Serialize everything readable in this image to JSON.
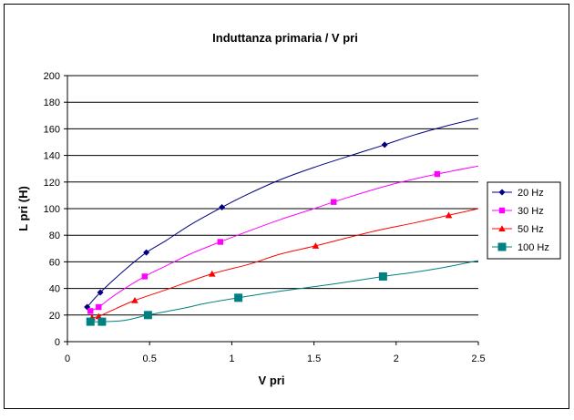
{
  "chart_data": {
    "type": "line",
    "title": "Induttanza primaria / V pri",
    "xlabel": "V pri",
    "ylabel": "L pri (H)",
    "xlim": [
      0,
      2.5
    ],
    "ylim": [
      0,
      200
    ],
    "x_ticks": [
      "0",
      "0.5",
      "1",
      "1.5",
      "2",
      "2.5"
    ],
    "y_ticks": [
      "0",
      "20",
      "40",
      "60",
      "80",
      "100",
      "120",
      "140",
      "160",
      "180",
      "200"
    ],
    "grid": "horizontal",
    "legend_position": "right",
    "series": [
      {
        "name": "20 Hz",
        "color": "#000080",
        "marker": "diamond",
        "points": [
          [
            0.12,
            26
          ],
          [
            0.2,
            37
          ],
          [
            0.48,
            67
          ],
          [
            0.94,
            101
          ],
          [
            1.93,
            148
          ]
        ],
        "curve": [
          [
            0.12,
            26
          ],
          [
            0.2,
            37
          ],
          [
            0.35,
            54
          ],
          [
            0.48,
            67
          ],
          [
            0.6,
            76
          ],
          [
            0.75,
            88
          ],
          [
            0.94,
            101
          ],
          [
            1.1,
            111
          ],
          [
            1.3,
            122
          ],
          [
            1.5,
            131
          ],
          [
            1.7,
            139
          ],
          [
            1.93,
            148
          ],
          [
            2.1,
            155
          ],
          [
            2.3,
            162
          ],
          [
            2.5,
            168
          ]
        ]
      },
      {
        "name": "30 Hz",
        "color": "#ff00ff",
        "marker": "square",
        "points": [
          [
            0.14,
            23
          ],
          [
            0.19,
            26
          ],
          [
            0.47,
            49
          ],
          [
            0.93,
            75
          ],
          [
            1.62,
            105
          ],
          [
            2.25,
            126
          ]
        ],
        "curve": [
          [
            0.14,
            23
          ],
          [
            0.19,
            26
          ],
          [
            0.3,
            36
          ],
          [
            0.47,
            49
          ],
          [
            0.6,
            57
          ],
          [
            0.75,
            66
          ],
          [
            0.93,
            75
          ],
          [
            1.1,
            83
          ],
          [
            1.3,
            92
          ],
          [
            1.5,
            100
          ],
          [
            1.62,
            105
          ],
          [
            1.8,
            112
          ],
          [
            2.0,
            119
          ],
          [
            2.25,
            126
          ],
          [
            2.5,
            132
          ]
        ]
      },
      {
        "name": "50 Hz",
        "color": "#ff0000",
        "marker": "triangle",
        "points": [
          [
            0.15,
            18
          ],
          [
            0.19,
            19
          ],
          [
            0.41,
            31
          ],
          [
            0.88,
            51
          ],
          [
            1.51,
            72
          ],
          [
            2.32,
            95
          ]
        ],
        "curve": [
          [
            0.15,
            18
          ],
          [
            0.19,
            19
          ],
          [
            0.28,
            24
          ],
          [
            0.41,
            31
          ],
          [
            0.6,
            39
          ],
          [
            0.88,
            51
          ],
          [
            1.1,
            58
          ],
          [
            1.3,
            66
          ],
          [
            1.51,
            72
          ],
          [
            1.7,
            78
          ],
          [
            1.9,
            84
          ],
          [
            2.1,
            89
          ],
          [
            2.32,
            95
          ],
          [
            2.5,
            100
          ]
        ]
      },
      {
        "name": "100 Hz",
        "color": "#008080",
        "marker": "square",
        "points": [
          [
            0.14,
            15
          ],
          [
            0.21,
            15
          ],
          [
            0.49,
            20
          ],
          [
            1.04,
            33
          ],
          [
            1.92,
            49
          ]
        ],
        "curve": [
          [
            0.14,
            15
          ],
          [
            0.21,
            15
          ],
          [
            0.35,
            16
          ],
          [
            0.49,
            20
          ],
          [
            0.7,
            25
          ],
          [
            0.85,
            29
          ],
          [
            1.04,
            33
          ],
          [
            1.3,
            38
          ],
          [
            1.6,
            43
          ],
          [
            1.92,
            49
          ],
          [
            2.1,
            52
          ],
          [
            2.3,
            56
          ],
          [
            2.5,
            61
          ]
        ]
      }
    ]
  }
}
